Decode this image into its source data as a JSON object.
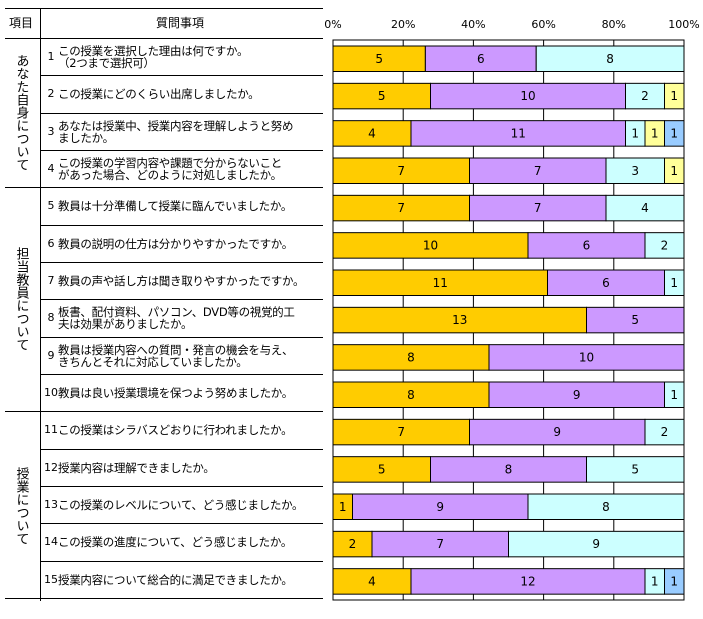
{
  "table": {
    "header_category": "項目",
    "header_question": "質問事項",
    "groups": [
      {
        "label": "あなた自身について"
      },
      {
        "label": "担当教員について"
      },
      {
        "label": "授業について"
      }
    ],
    "questions": [
      {
        "num": "1",
        "text": "この授業を選択した理由は何ですか。\n（2つまで選択可）"
      },
      {
        "num": "2",
        "text": "この授業にどのくらい出席しましたか。"
      },
      {
        "num": "3",
        "text": "あなたは授業中、授業内容を理解しようと努め\nましたか。"
      },
      {
        "num": "4",
        "text": "この授業の学習内容や課題で分からないこと\nがあった場合、どのように対処しましたか。"
      },
      {
        "num": "5",
        "text": "教員は十分準備して授業に臨んでいましたか。"
      },
      {
        "num": "6",
        "text": "教員の説明の仕方は分かりやすかったですか。"
      },
      {
        "num": "7",
        "text": "教員の声や話し方は聞き取りやすかったですか。"
      },
      {
        "num": "8",
        "text": "板書、配付資料、パソコン、DVD等の視覚的工\n夫は効果がありましたか。"
      },
      {
        "num": "9",
        "text": "教員は授業内容への質問・発言の機会を与え、\nきちんとそれに対応していましたか。"
      },
      {
        "num": "10",
        "text": "教員は良い授業環境を保つよう努めましたか。"
      },
      {
        "num": "11",
        "text": "この授業はシラバスどおりに行われましたか。"
      },
      {
        "num": "12",
        "text": "授業内容は理解できましたか。"
      },
      {
        "num": "13",
        "text": "この授業のレベルについて、どう感じましたか。"
      },
      {
        "num": "14",
        "text": "この授業の進度について、どう感じましたか。"
      },
      {
        "num": "15",
        "text": "授業内容について総合的に満足できましたか。"
      }
    ]
  },
  "chart_data": {
    "type": "bar",
    "orientation": "horizontal",
    "stacked": "percent",
    "categories": [
      "1",
      "2",
      "3",
      "4",
      "5",
      "6",
      "7",
      "8",
      "9",
      "10",
      "11",
      "12",
      "13",
      "14",
      "15"
    ],
    "xticks": [
      "0%",
      "20%",
      "40%",
      "60%",
      "80%",
      "100%"
    ],
    "xlim": [
      0,
      100
    ],
    "grid": true,
    "colors": [
      "#FFCC00",
      "#CC99FF",
      "#CCFFFF",
      "#FFFF99",
      "#99CCFF"
    ],
    "series": [
      {
        "name": "1",
        "values": [
          5,
          5,
          4,
          7,
          7,
          10,
          11,
          13,
          8,
          8,
          7,
          5,
          1,
          2,
          4
        ]
      },
      {
        "name": "2",
        "values": [
          6,
          10,
          11,
          7,
          7,
          6,
          6,
          5,
          10,
          9,
          9,
          8,
          9,
          7,
          12
        ]
      },
      {
        "name": "3",
        "values": [
          8,
          2,
          1,
          3,
          4,
          2,
          1,
          0,
          0,
          1,
          2,
          5,
          8,
          9,
          1
        ]
      },
      {
        "name": "4",
        "values": [
          0,
          1,
          1,
          1,
          0,
          0,
          0,
          0,
          0,
          0,
          0,
          0,
          0,
          0,
          0
        ]
      },
      {
        "name": "5",
        "values": [
          0,
          0,
          1,
          0,
          0,
          0,
          0,
          0,
          0,
          0,
          0,
          0,
          0,
          0,
          1
        ]
      }
    ]
  }
}
